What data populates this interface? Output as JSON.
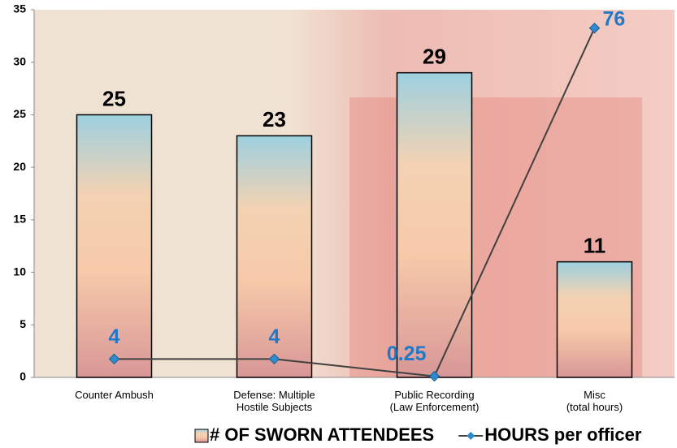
{
  "chart_data": {
    "type": "bar",
    "categories": [
      "Counter Ambush",
      "Defense: Multiple\nHostile Subjects",
      "Public Recording\n(Law Enforcement)",
      "Misc\n(total hours)"
    ],
    "series": [
      {
        "name": "# OF SWORN ATTENDEES",
        "type": "bar",
        "values": [
          25,
          23,
          29,
          11
        ]
      },
      {
        "name": "HOURS per officer",
        "type": "line",
        "axis": "y2",
        "color": "#2e8bd0",
        "values": [
          4,
          4,
          0.25,
          76
        ]
      }
    ],
    "ylim": [
      0,
      35
    ],
    "yticks": [
      0,
      5,
      10,
      15,
      20,
      25,
      30,
      35
    ],
    "y2lim": [
      0,
      80
    ],
    "legend": "bottom"
  }
}
